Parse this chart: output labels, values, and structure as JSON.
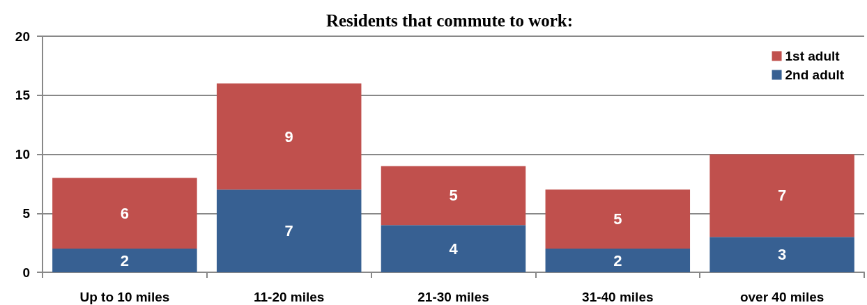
{
  "chart_data": {
    "type": "bar",
    "title": "Residents that commute to work:",
    "categories": [
      "Up to 10 miles",
      "11-20 miles",
      "21-30 miles",
      "31-40 miles",
      "over 40 miles"
    ],
    "series": [
      {
        "name": "2nd adult",
        "color": "#376092",
        "values": [
          2,
          7,
          4,
          2,
          3
        ]
      },
      {
        "name": "1st adult",
        "color": "#c0504d",
        "values": [
          6,
          9,
          5,
          5,
          7
        ]
      }
    ],
    "stacked": true,
    "data_labels": true,
    "ylim": [
      0,
      20
    ],
    "yticks": [
      0,
      5,
      10,
      15,
      20
    ],
    "grid": "y",
    "legend": "top right"
  }
}
